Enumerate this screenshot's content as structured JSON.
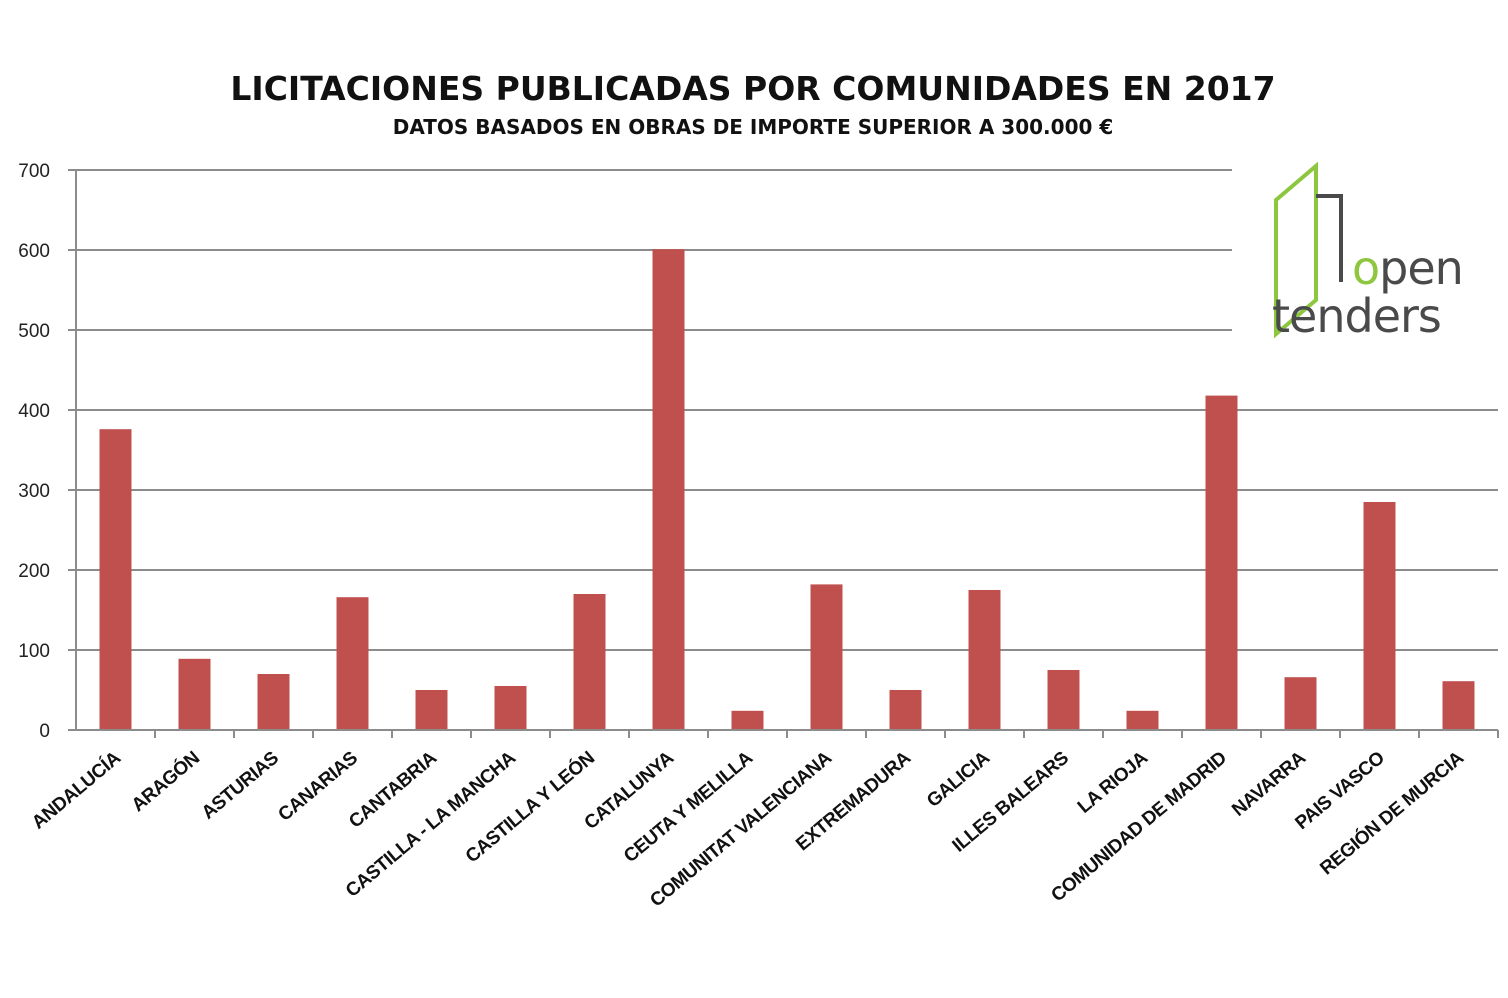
{
  "chart_data": {
    "type": "bar",
    "title": "LICITACIONES PUBLICADAS POR COMUNIDADES EN 2017",
    "subtitle": "DATOS BASADOS EN OBRAS DE IMPORTE SUPERIOR A 300.000 €",
    "categories": [
      "ANDALUCÍA",
      "ARAGÓN",
      "ASTURIAS",
      "CANARIAS",
      "CANTABRIA",
      "CASTILLA - LA MANCHA",
      "CASTILLA Y LEÓN",
      "CATALUNYA",
      "CEUTA Y MELILLA",
      "COMUNITAT VALENCIANA",
      "EXTREMADURA",
      "GALICIA",
      "ILLES BALEARS",
      "LA RIOJA",
      "COMUNIDAD DE MADRID",
      "NAVARRA",
      "PAIS VASCO",
      "REGIÓN DE MURCIA"
    ],
    "values": [
      376,
      89,
      70,
      166,
      50,
      55,
      170,
      601,
      24,
      182,
      50,
      175,
      75,
      24,
      418,
      66,
      285,
      61
    ],
    "yticks": [
      "0",
      "100",
      "200",
      "300",
      "400",
      "500",
      "600",
      "700"
    ],
    "ylim": [
      0,
      700
    ],
    "grid": true,
    "bar_color": "#c0504d",
    "grid_color": "#8c8c8c"
  },
  "logo": {
    "line1": "open",
    "line2": "tenders",
    "accent_color": "#8dc63f",
    "text_color": "#4a4a4a"
  }
}
